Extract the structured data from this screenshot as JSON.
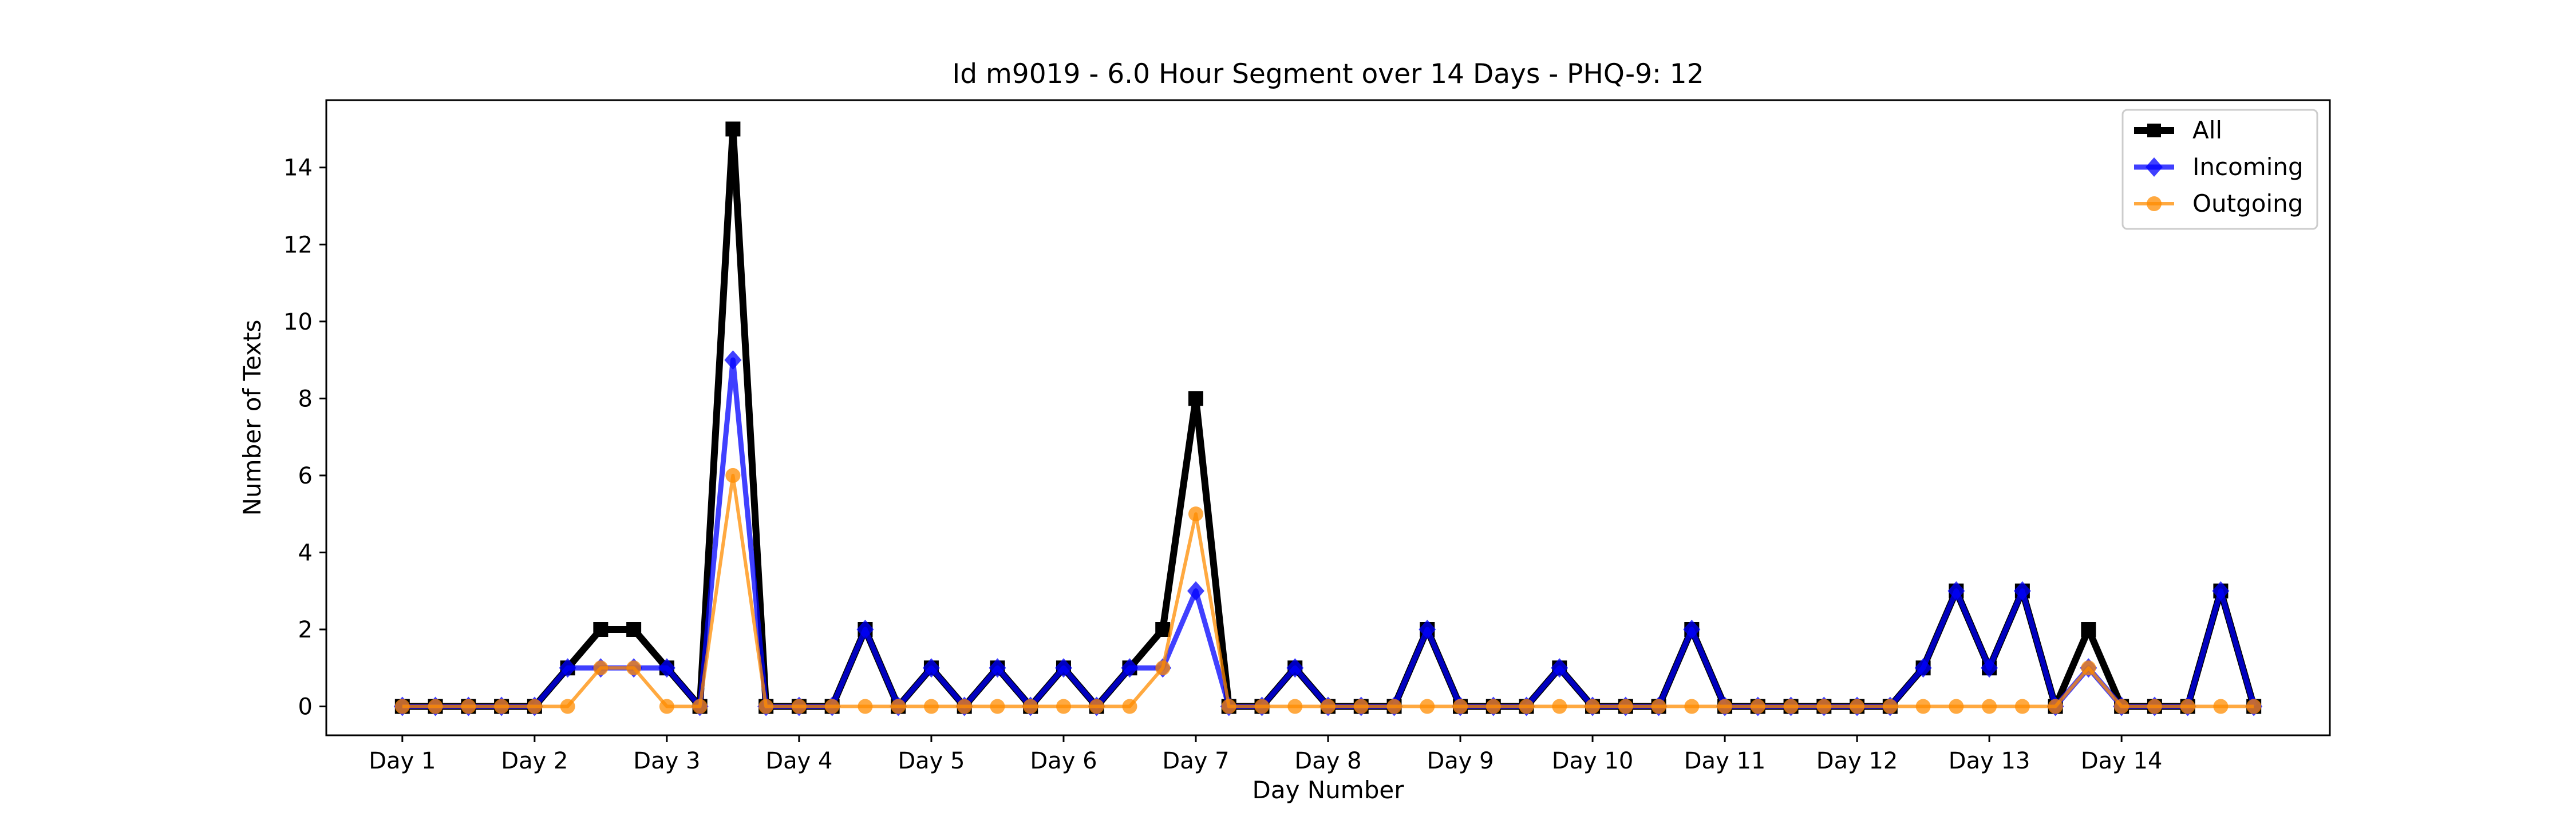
{
  "chart_data": {
    "type": "line",
    "title": "Id m9019 - 6.0 Hour Segment over 14 Days - PHQ-9: 12",
    "xlabel": "Day Number",
    "ylabel": "Number of Texts",
    "x_tick_labels": [
      "Day 1",
      "Day 2",
      "Day 3",
      "Day 4",
      "Day 5",
      "Day 6",
      "Day 7",
      "Day 8",
      "Day 9",
      "Day 10",
      "Day 11",
      "Day 12",
      "Day 13",
      "Day 14"
    ],
    "y_ticks": [
      0,
      2,
      4,
      6,
      8,
      10,
      12,
      14
    ],
    "ylim": [
      -0.75,
      15.75
    ],
    "points_per_day": 4,
    "grid": false,
    "legend_position": "top-right",
    "series": [
      {
        "name": "All",
        "color": "#000000",
        "marker": "square",
        "values": [
          0,
          0,
          0,
          0,
          0,
          1,
          2,
          2,
          1,
          0,
          15,
          0,
          0,
          0,
          2,
          0,
          1,
          0,
          1,
          0,
          1,
          0,
          1,
          2,
          8,
          0,
          0,
          1,
          0,
          0,
          0,
          2,
          0,
          0,
          0,
          1,
          0,
          0,
          0,
          2,
          0,
          0,
          0,
          0,
          0,
          0,
          1,
          3,
          1,
          3,
          0,
          2,
          0,
          0,
          0,
          3,
          0
        ]
      },
      {
        "name": "Incoming",
        "color": "#0000ff",
        "marker": "diamond",
        "values": [
          0,
          0,
          0,
          0,
          0,
          1,
          1,
          1,
          1,
          0,
          9,
          0,
          0,
          0,
          2,
          0,
          1,
          0,
          1,
          0,
          1,
          0,
          1,
          1,
          3,
          0,
          0,
          1,
          0,
          0,
          0,
          2,
          0,
          0,
          0,
          1,
          0,
          0,
          0,
          2,
          0,
          0,
          0,
          0,
          0,
          0,
          1,
          3,
          1,
          3,
          0,
          1,
          0,
          0,
          0,
          3,
          0
        ]
      },
      {
        "name": "Outgoing",
        "color": "#ff8c00",
        "marker": "circle",
        "values": [
          0,
          0,
          0,
          0,
          0,
          0,
          1,
          1,
          0,
          0,
          6,
          0,
          0,
          0,
          0,
          0,
          0,
          0,
          0,
          0,
          0,
          0,
          0,
          1,
          5,
          0,
          0,
          0,
          0,
          0,
          0,
          0,
          0,
          0,
          0,
          0,
          0,
          0,
          0,
          0,
          0,
          0,
          0,
          0,
          0,
          0,
          0,
          0,
          0,
          0,
          0,
          1,
          0,
          0,
          0,
          0,
          0
        ]
      }
    ]
  }
}
